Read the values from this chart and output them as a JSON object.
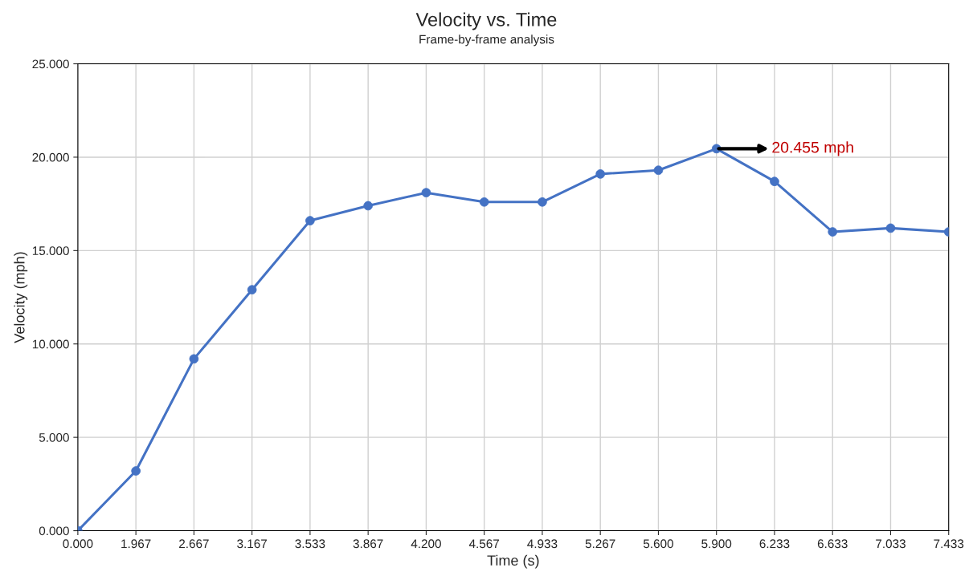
{
  "chart_data": {
    "type": "line",
    "title": "Velocity vs. Time",
    "subtitle": "Frame-by-frame analysis",
    "xlabel": "Time (s)",
    "ylabel": "Velocity (mph)",
    "categories": [
      "0.000",
      "1.967",
      "2.667",
      "3.167",
      "3.533",
      "3.867",
      "4.200",
      "4.567",
      "4.933",
      "5.267",
      "5.600",
      "5.900",
      "6.233",
      "6.633",
      "7.033",
      "7.433"
    ],
    "series": [
      {
        "color": "#4472c4",
        "values": [
          0,
          3.2,
          9.2,
          12.9,
          16.6,
          17.4,
          18.1,
          17.6,
          17.6,
          19.1,
          19.3,
          20.455,
          18.7,
          16.0,
          16.2,
          16.0
        ]
      }
    ],
    "ylim": [
      0,
      25
    ],
    "yticks": [
      {
        "value": 0,
        "label": "0.000"
      },
      {
        "value": 5,
        "label": "5.000"
      },
      {
        "value": 10,
        "label": "10.000"
      },
      {
        "value": 15,
        "label": "15.000"
      },
      {
        "value": 20,
        "label": "20.000"
      },
      {
        "value": 25,
        "label": "25.000"
      }
    ],
    "grid": true,
    "marker": "circle",
    "line_style": "solid",
    "annotations": [
      {
        "text": "20.455 mph",
        "x": "5.900",
        "y": 20.455
      }
    ]
  }
}
